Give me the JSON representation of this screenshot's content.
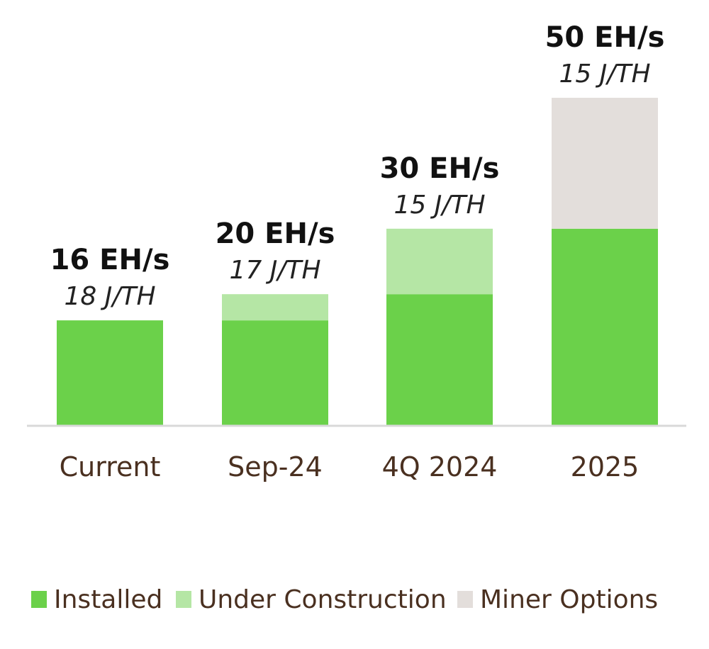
{
  "chart_data": {
    "type": "bar",
    "stacked": true,
    "categories": [
      "Current",
      "Sep-24",
      "4Q 2024",
      "2025"
    ],
    "series": [
      {
        "name": "Installed",
        "color": "#6bd14a",
        "values": [
          16,
          16,
          20,
          30
        ]
      },
      {
        "name": "Under Construction",
        "color": "#b5e6a5",
        "values": [
          0,
          4,
          10,
          0
        ]
      },
      {
        "name": "Miner Options",
        "color": "#e3dedb",
        "values": [
          0,
          0,
          0,
          20
        ]
      }
    ],
    "value_labels": [
      "16 EH/s",
      "20 EH/s",
      "30 EH/s",
      "50 EH/s"
    ],
    "efficiency_labels": [
      "18 J/TH",
      "17 J/TH",
      "15 J/TH",
      "15 J/TH"
    ],
    "ylim": [
      0,
      50
    ],
    "grid": false,
    "legend_position": "bottom",
    "colors": {
      "axis": "#d9d9d9",
      "text": "#4a3020"
    }
  }
}
